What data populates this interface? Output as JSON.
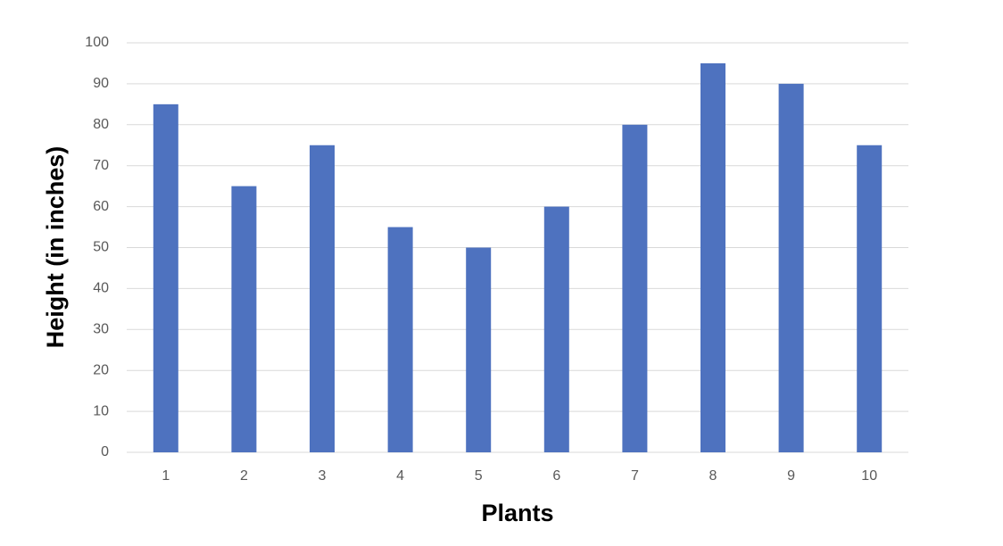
{
  "chart_data": {
    "type": "bar",
    "x_label": "Plants",
    "y_label": "Height (in inches)",
    "categories": [
      "1",
      "2",
      "3",
      "4",
      "5",
      "6",
      "7",
      "8",
      "9",
      "10"
    ],
    "values": [
      85,
      65,
      75,
      55,
      50,
      60,
      80,
      95,
      90,
      75
    ],
    "color": "#4e72bf",
    "ylim": [
      0,
      100
    ],
    "yticks": [
      0,
      10,
      20,
      30,
      40,
      50,
      60,
      70,
      80,
      90,
      100
    ],
    "grid": true
  }
}
